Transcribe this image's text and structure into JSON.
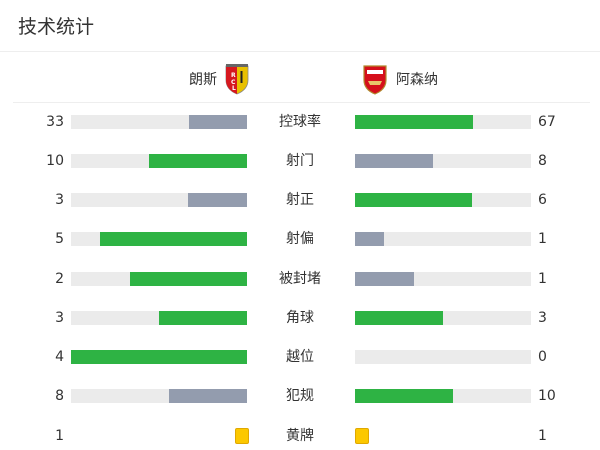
{
  "title": "技术统计",
  "home": {
    "name": "朗斯",
    "logo": "rc-lens-crest"
  },
  "away": {
    "name": "阿森纳",
    "logo": "arsenal-crest"
  },
  "colors": {
    "win": "#2eb344",
    "lose": "#939cae",
    "track": "#ebebeb",
    "yellow": "#fcc800"
  },
  "stats": [
    {
      "label": "控球率",
      "home": "33",
      "away": "67"
    },
    {
      "label": "射门",
      "home": "10",
      "away": "8"
    },
    {
      "label": "射正",
      "home": "3",
      "away": "6"
    },
    {
      "label": "射偏",
      "home": "5",
      "away": "1"
    },
    {
      "label": "被封堵",
      "home": "2",
      "away": "1"
    },
    {
      "label": "角球",
      "home": "3",
      "away": "3"
    },
    {
      "label": "越位",
      "home": "4",
      "away": "0"
    },
    {
      "label": "犯规",
      "home": "8",
      "away": "10"
    },
    {
      "label": "黄牌",
      "home": "1",
      "away": "1",
      "type": "yellow-card"
    }
  ]
}
